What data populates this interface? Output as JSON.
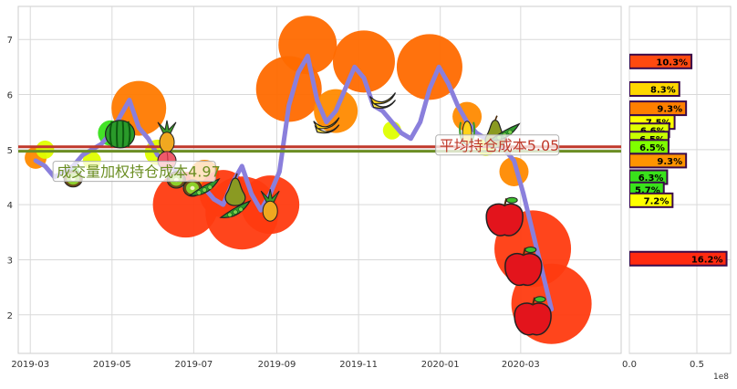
{
  "chart_data": [
    {
      "type": "line",
      "title": "",
      "xlabel": "",
      "ylabel": "",
      "xlim": [
        "2019-02-20",
        "2020-05-15"
      ],
      "ylim": [
        1.3,
        7.6
      ],
      "x_ticks": [
        "2019-03",
        "2019-05",
        "2019-07",
        "2019-09",
        "2019-11",
        "2020-01",
        "2020-03"
      ],
      "y_ticks": [
        2,
        3,
        4,
        5,
        6,
        7
      ],
      "grid": true,
      "series": [
        {
          "color": "#8a7fdc",
          "x": [
            "2019-03-05",
            "2019-03-12",
            "2019-03-19",
            "2019-03-26",
            "2019-04-02",
            "2019-04-09",
            "2019-04-16",
            "2019-04-23",
            "2019-04-30",
            "2019-05-07",
            "2019-05-14",
            "2019-05-21",
            "2019-05-28",
            "2019-06-04",
            "2019-06-11",
            "2019-06-18",
            "2019-06-25",
            "2019-07-02",
            "2019-07-09",
            "2019-07-16",
            "2019-07-23",
            "2019-07-30",
            "2019-08-06",
            "2019-08-13",
            "2019-08-20",
            "2019-08-27",
            "2019-09-03",
            "2019-09-10",
            "2019-09-17",
            "2019-09-24",
            "2019-10-01",
            "2019-10-08",
            "2019-10-15",
            "2019-10-22",
            "2019-10-29",
            "2019-11-05",
            "2019-11-12",
            "2019-11-19",
            "2019-11-26",
            "2019-12-03",
            "2019-12-10",
            "2019-12-17",
            "2019-12-24",
            "2019-12-31",
            "2020-01-07",
            "2020-01-14",
            "2020-01-21",
            "2020-01-28",
            "2020-02-04",
            "2020-02-11",
            "2020-02-18",
            "2020-02-25",
            "2020-03-03",
            "2020-03-10",
            "2020-03-17",
            "2020-03-24"
          ],
          "y": [
            4.8,
            4.7,
            4.5,
            4.6,
            4.7,
            4.9,
            5.0,
            5.1,
            5.3,
            5.6,
            5.9,
            5.4,
            5.2,
            4.9,
            4.8,
            4.6,
            4.3,
            4.2,
            4.3,
            4.1,
            4.0,
            4.4,
            4.7,
            4.2,
            3.9,
            4.2,
            4.6,
            5.8,
            6.4,
            6.7,
            5.9,
            5.5,
            5.7,
            6.1,
            6.5,
            6.3,
            5.8,
            5.7,
            5.5,
            5.3,
            5.2,
            5.5,
            6.1,
            6.5,
            6.2,
            5.8,
            5.5,
            5.3,
            5.2,
            5.1,
            5.0,
            4.8,
            4.2,
            3.5,
            2.8,
            2.1
          ]
        }
      ],
      "reference_lines": [
        {
          "label": "平均持仓成本5.05",
          "y": 5.05,
          "color": "#c0392b"
        },
        {
          "label": "成交量加权持仓成本4.97",
          "y": 4.97,
          "color": "#6b8e23"
        }
      ],
      "bubbles": [
        {
          "x": "2019-03-05",
          "y": 4.85,
          "size": 12,
          "color": "#ff8a00"
        },
        {
          "x": "2019-03-12",
          "y": 5.0,
          "size": 10,
          "color": "#dfff00"
        },
        {
          "x": "2019-04-02",
          "y": 4.55,
          "size": 8,
          "color": "#39e21b"
        },
        {
          "x": "2019-04-16",
          "y": 4.8,
          "size": 10,
          "color": "#dfff00"
        },
        {
          "x": "2019-04-30",
          "y": 5.3,
          "size": 14,
          "color": "#39e21b"
        },
        {
          "x": "2019-05-21",
          "y": 5.75,
          "size": 30,
          "color": "#ff7a00"
        },
        {
          "x": "2019-06-04",
          "y": 4.95,
          "size": 14,
          "color": "#dfff00"
        },
        {
          "x": "2019-06-25",
          "y": 4.0,
          "size": 36,
          "color": "#ff3b10"
        },
        {
          "x": "2019-07-09",
          "y": 4.55,
          "size": 16,
          "color": "#ff8a00"
        },
        {
          "x": "2019-07-23",
          "y": 4.2,
          "size": 26,
          "color": "#ff3b10"
        },
        {
          "x": "2019-08-06",
          "y": 3.85,
          "size": 40,
          "color": "#ff3b10"
        },
        {
          "x": "2019-08-27",
          "y": 4.0,
          "size": 32,
          "color": "#ff3b10"
        },
        {
          "x": "2019-09-10",
          "y": 6.1,
          "size": 36,
          "color": "#ff6a00"
        },
        {
          "x": "2019-09-24",
          "y": 6.9,
          "size": 32,
          "color": "#ff6a00"
        },
        {
          "x": "2019-10-15",
          "y": 5.7,
          "size": 24,
          "color": "#ff8a00"
        },
        {
          "x": "2019-11-05",
          "y": 6.6,
          "size": 34,
          "color": "#ff6a00"
        },
        {
          "x": "2019-11-26",
          "y": 5.35,
          "size": 10,
          "color": "#dfff00"
        },
        {
          "x": "2019-12-24",
          "y": 6.5,
          "size": 36,
          "color": "#ff6a00"
        },
        {
          "x": "2020-01-21",
          "y": 5.6,
          "size": 16,
          "color": "#ff8a00"
        },
        {
          "x": "2020-02-04",
          "y": 5.05,
          "size": 10,
          "color": "#dfff00"
        },
        {
          "x": "2020-02-25",
          "y": 4.6,
          "size": 16,
          "color": "#ff8a00"
        },
        {
          "x": "2020-03-10",
          "y": 3.2,
          "size": 42,
          "color": "#ff3b10"
        },
        {
          "x": "2020-03-24",
          "y": 2.2,
          "size": 44,
          "color": "#ff3b10"
        }
      ],
      "fruit_icons": [
        {
          "x": "2019-04-02",
          "y": 4.47,
          "icon": "kiwi-icon"
        },
        {
          "x": "2019-05-07",
          "y": 5.28,
          "icon": "watermelon-icon"
        },
        {
          "x": "2019-06-11",
          "y": 5.2,
          "icon": "pineapple-icon"
        },
        {
          "x": "2019-06-11",
          "y": 4.8,
          "icon": "peach-icon"
        },
        {
          "x": "2019-06-18",
          "y": 4.45,
          "icon": "kiwi-icon"
        },
        {
          "x": "2019-06-30",
          "y": 4.3,
          "icon": "kiwi-icon"
        },
        {
          "x": "2019-07-09",
          "y": 4.3,
          "icon": "peapod-icon"
        },
        {
          "x": "2019-08-01",
          "y": 4.25,
          "icon": "pear-icon"
        },
        {
          "x": "2019-08-01",
          "y": 3.9,
          "icon": "peapod-icon"
        },
        {
          "x": "2019-08-27",
          "y": 3.95,
          "icon": "pineapple-icon"
        },
        {
          "x": "2019-10-08",
          "y": 5.45,
          "icon": "banana-icon"
        },
        {
          "x": "2019-11-19",
          "y": 5.9,
          "icon": "banana-icon"
        },
        {
          "x": "2020-01-21",
          "y": 5.3,
          "icon": "corn-icon"
        },
        {
          "x": "2020-02-11",
          "y": 5.3,
          "icon": "pear-icon"
        },
        {
          "x": "2020-02-18",
          "y": 5.3,
          "icon": "peapod-icon"
        },
        {
          "x": "2020-02-18",
          "y": 3.75,
          "icon": "apple-icon"
        },
        {
          "x": "2020-03-03",
          "y": 2.85,
          "icon": "apple-icon"
        },
        {
          "x": "2020-03-10",
          "y": 1.95,
          "icon": "apple-icon"
        }
      ]
    },
    {
      "type": "bar",
      "orientation": "horizontal",
      "xlabel": "",
      "xlim": [
        0,
        75000000
      ],
      "x_ticks": [
        "0.0",
        "0.5"
      ],
      "x_offset_label": "1e8",
      "ylim": [
        1.3,
        7.6
      ],
      "bars": [
        {
          "y": 6.6,
          "value": 46000000,
          "label": "10.3%",
          "color": "#ff4a10"
        },
        {
          "y": 6.1,
          "value": 37000000,
          "label": "8.3%",
          "color": "#ffd700"
        },
        {
          "y": 5.75,
          "value": 42000000,
          "label": "9.3%",
          "color": "#ff7f00"
        },
        {
          "y": 5.5,
          "value": 33500000,
          "label": "7.5%",
          "color": "#ffff00"
        },
        {
          "y": 5.35,
          "value": 29500000,
          "label": "6.6%",
          "color": "#dfff00"
        },
        {
          "y": 5.2,
          "value": 29000000,
          "label": "6.5%",
          "color": "#c8ff00"
        },
        {
          "y": 5.05,
          "value": 29000000,
          "label": "6.5%",
          "color": "#7fff00"
        },
        {
          "y": 4.8,
          "value": 42000000,
          "label": "9.3%",
          "color": "#ff9400"
        },
        {
          "y": 4.5,
          "value": 28000000,
          "label": "6.3%",
          "color": "#39e21b"
        },
        {
          "y": 4.28,
          "value": 25500000,
          "label": "5.7%",
          "color": "#39e21b"
        },
        {
          "y": 4.08,
          "value": 32000000,
          "label": "7.2%",
          "color": "#ffff00"
        },
        {
          "y": 3.02,
          "value": 72000000,
          "label": "16.2%",
          "color": "#ff2a10"
        }
      ]
    }
  ]
}
